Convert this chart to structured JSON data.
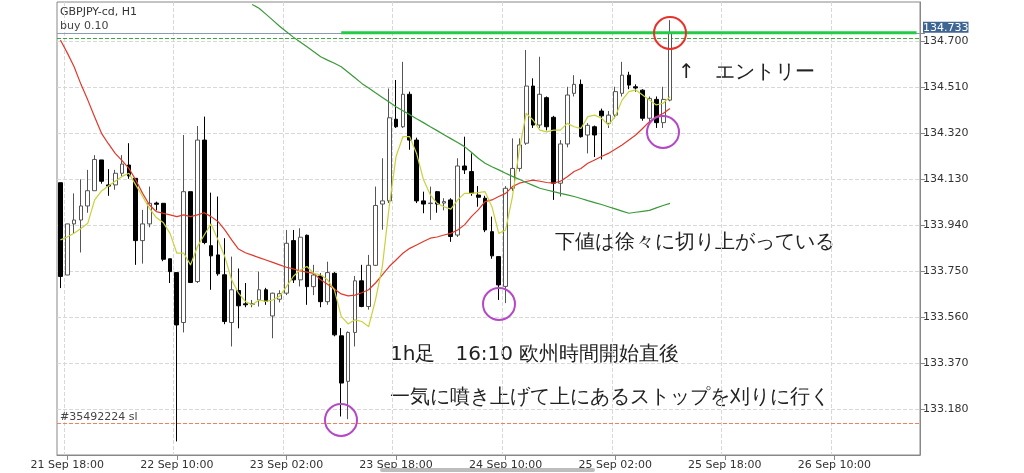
{
  "chart_data": {
    "type": "candlestick",
    "title": "GBPJPY-cd, H1",
    "categories": [
      null,
      "21 Sep 18:00",
      null,
      null,
      null,
      null,
      null,
      null,
      null,
      null,
      null,
      null,
      null,
      null,
      null,
      null,
      null,
      "22 Sep 10:00",
      null,
      null,
      null,
      null,
      null,
      null,
      null,
      null,
      null,
      null,
      null,
      null,
      null,
      null,
      null,
      "23 Sep 02:00",
      null,
      null,
      null,
      null,
      null,
      null,
      null,
      null,
      null,
      null,
      null,
      null,
      null,
      null,
      null,
      "23 Sep 18:00",
      null,
      null,
      null,
      null,
      null,
      null,
      null,
      null,
      null,
      null,
      null,
      null,
      null,
      null,
      null,
      "24 Sep 10:00",
      null,
      null,
      null,
      null,
      null,
      null,
      null,
      null,
      null,
      null,
      null,
      null,
      null,
      null,
      null,
      "25 Sep 02:00",
      null,
      null,
      null,
      null,
      null,
      null,
      null,
      null,
      null,
      null,
      null,
      null,
      null,
      null,
      null,
      "25 Sep 18:00",
      null,
      null,
      null,
      null,
      null,
      null,
      null,
      null,
      null,
      null,
      null,
      null,
      null,
      null,
      null,
      "26 Sep 10:00",
      null,
      null,
      null,
      null,
      null,
      null,
      null,
      null,
      null,
      null,
      null,
      null
    ],
    "ohlc": [
      [
        134.114,
        134.114,
        133.679,
        133.727
      ],
      [
        133.733,
        133.944,
        133.733,
        133.944
      ],
      [
        133.944,
        134.07,
        133.905,
        133.96
      ],
      [
        133.96,
        134.128,
        133.826,
        134.018
      ],
      [
        134.018,
        134.167,
        133.99,
        134.081
      ],
      [
        134.081,
        134.228,
        134.081,
        134.21
      ],
      [
        134.208,
        134.208,
        134.11,
        134.12
      ],
      [
        134.105,
        134.17,
        134.06,
        134.1
      ],
      [
        134.105,
        134.167,
        134.085,
        134.153
      ],
      [
        134.153,
        134.228,
        134.14,
        134.191
      ],
      [
        134.187,
        134.277,
        134.13,
        134.142
      ],
      [
        134.132,
        134.132,
        133.775,
        133.875
      ],
      [
        133.875,
        134.002,
        133.78,
        133.944
      ],
      [
        133.944,
        134.098,
        133.93,
        134.029
      ],
      [
        134.03,
        134.036,
        134.0,
        134.025
      ],
      [
        134.029,
        134.03,
        133.79,
        133.798
      ],
      [
        133.8,
        133.8,
        133.7,
        133.747
      ],
      [
        133.743,
        133.743,
        133.046,
        133.527
      ],
      [
        133.537,
        134.311,
        133.496,
        134.077
      ],
      [
        134.077,
        134.077,
        133.7,
        133.702
      ],
      [
        133.706,
        134.348,
        133.7,
        134.29
      ],
      [
        134.29,
        134.387,
        133.86,
        133.867
      ],
      [
        133.854,
        134.073,
        133.672,
        133.812
      ],
      [
        133.816,
        134.057,
        133.73,
        133.738
      ],
      [
        133.734,
        133.885,
        133.53,
        133.541
      ],
      [
        133.537,
        133.809,
        133.438,
        133.672
      ],
      [
        133.669,
        133.76,
        133.513,
        133.606
      ],
      [
        133.614,
        133.7,
        133.6,
        133.61
      ],
      [
        133.612,
        133.63,
        133.6,
        133.615
      ],
      [
        133.63,
        133.747,
        133.603,
        133.672
      ],
      [
        133.672,
        133.68,
        133.61,
        133.624
      ],
      [
        133.564,
        133.66,
        133.472,
        133.658
      ],
      [
        133.633,
        133.67,
        133.62,
        133.656
      ],
      [
        133.658,
        133.919,
        133.65,
        133.864
      ],
      [
        133.875,
        133.919,
        133.7,
        133.713
      ],
      [
        133.713,
        133.926,
        133.686,
        133.889
      ],
      [
        133.897,
        133.9,
        133.61,
        133.685
      ],
      [
        133.685,
        133.775,
        133.65,
        133.733
      ],
      [
        133.729,
        133.74,
        133.6,
        133.623
      ],
      [
        133.623,
        133.788,
        133.61,
        133.743
      ],
      [
        133.74,
        133.745,
        133.48,
        133.486
      ],
      [
        133.482,
        133.514,
        133.149,
        133.287
      ],
      [
        133.294,
        133.5,
        133.138,
        133.496
      ],
      [
        133.496,
        133.729,
        133.438,
        133.709
      ],
      [
        133.709,
        133.775,
        133.6,
        133.603
      ],
      [
        133.603,
        133.816,
        133.59,
        133.773
      ],
      [
        133.773,
        134.098,
        133.77,
        134.02
      ],
      [
        134.026,
        134.215,
        133.92,
        134.039
      ],
      [
        134.039,
        134.503,
        134.03,
        134.382
      ],
      [
        134.376,
        134.538,
        134.34,
        134.345
      ],
      [
        134.345,
        134.613,
        134.34,
        134.479
      ],
      [
        134.479,
        134.49,
        134.25,
        134.29
      ],
      [
        134.29,
        134.3,
        134.03,
        134.039
      ],
      [
        134.039,
        134.077,
        133.988,
        134.026
      ],
      [
        134.028,
        134.098,
        133.96,
        134.03
      ],
      [
        134.077,
        134.08,
        133.99,
        134.026
      ],
      [
        134.03,
        134.05,
        134.0,
        134.036
      ],
      [
        134.043,
        134.05,
        133.87,
        133.892
      ],
      [
        133.898,
        134.215,
        133.89,
        134.183
      ],
      [
        134.183,
        134.304,
        134.15,
        134.167
      ],
      [
        134.16,
        134.235,
        134.06,
        134.07
      ],
      [
        134.063,
        134.1,
        134.015,
        134.054
      ],
      [
        134.05,
        134.06,
        133.91,
        133.919
      ],
      [
        133.912,
        133.974,
        133.8,
        133.812
      ],
      [
        133.809,
        133.81,
        133.63,
        133.692
      ],
      [
        133.686,
        134.1,
        133.617,
        134.091
      ],
      [
        134.091,
        134.297,
        134.08,
        134.173
      ],
      [
        134.173,
        134.297,
        134.16,
        134.27
      ],
      [
        134.277,
        134.662,
        134.27,
        134.513
      ],
      [
        134.513,
        134.545,
        134.34,
        134.352
      ],
      [
        134.352,
        134.634,
        134.34,
        134.479
      ],
      [
        134.465,
        134.47,
        134.33,
        134.345
      ],
      [
        134.384,
        134.39,
        134.043,
        134.112
      ],
      [
        134.112,
        134.29,
        134.057,
        134.274
      ],
      [
        134.274,
        134.51,
        134.26,
        134.476
      ],
      [
        134.483,
        134.558,
        134.47,
        134.52
      ],
      [
        134.52,
        134.54,
        134.3,
        134.304
      ],
      [
        134.311,
        134.36,
        134.235,
        134.351
      ],
      [
        134.345,
        134.35,
        134.22,
        134.311
      ],
      [
        134.41,
        134.42,
        134.21,
        134.39
      ],
      [
        134.359,
        134.41,
        134.34,
        134.393
      ],
      [
        134.393,
        134.51,
        134.38,
        134.49
      ],
      [
        134.483,
        134.613,
        134.47,
        134.558
      ],
      [
        134.558,
        134.572,
        134.5,
        134.517
      ],
      [
        134.51,
        134.52,
        134.49,
        134.505
      ],
      [
        134.496,
        134.5,
        134.37,
        134.38
      ],
      [
        134.38,
        134.47,
        134.36,
        134.462
      ],
      [
        134.458,
        134.47,
        134.34,
        134.362
      ],
      [
        134.362,
        134.51,
        134.34,
        134.458
      ],
      [
        134.455,
        134.785,
        134.45,
        134.73
      ],
      null,
      null,
      null,
      null,
      null,
      null,
      null,
      null,
      null,
      null,
      null,
      null,
      null,
      null,
      null,
      null,
      null,
      null,
      null,
      null,
      null,
      null,
      null,
      null,
      null,
      null,
      null,
      null,
      null,
      null,
      null,
      null,
      null,
      null,
      null,
      null
    ],
    "series": [
      {
        "type": "line",
        "color": "#e0392b",
        "values": [
          134.703,
          134.65,
          134.593,
          134.52,
          134.455,
          134.385,
          134.318,
          134.275,
          134.235,
          134.205,
          134.173,
          134.125,
          134.07,
          134.022,
          133.995,
          133.988,
          133.981,
          133.974,
          133.981,
          133.974,
          133.981,
          133.99,
          133.974,
          133.954,
          133.919,
          133.878,
          133.84,
          133.825,
          133.815,
          133.805,
          133.795,
          133.785,
          133.775,
          133.765,
          133.758,
          133.75,
          133.745,
          133.74,
          133.713,
          133.695,
          133.675,
          133.655,
          133.647,
          133.65,
          133.66,
          133.672,
          133.7,
          133.734,
          133.768,
          133.795,
          133.823,
          133.843,
          133.857,
          133.871,
          133.885,
          133.89,
          133.898,
          133.905,
          133.919,
          133.94,
          133.974,
          134.002,
          134.036,
          134.043,
          134.057,
          134.07,
          134.098,
          134.112,
          134.119,
          134.125,
          134.12,
          134.115,
          134.112,
          134.12,
          134.139,
          134.16,
          134.173,
          134.194,
          134.208,
          134.222,
          134.235,
          134.252,
          134.27,
          134.29,
          134.311,
          134.338,
          134.366,
          134.387,
          134.4,
          134.42,
          null,
          null,
          null,
          null,
          null,
          null,
          null,
          null,
          null,
          null,
          null,
          null,
          null,
          null,
          null,
          null,
          null,
          null,
          null,
          null,
          null,
          null,
          null,
          null,
          null,
          null,
          null,
          null,
          null,
          null,
          null,
          null,
          null,
          null,
          null,
          null
        ]
      },
      {
        "type": "line",
        "color": "#c8d23a",
        "values": [
          133.878,
          133.89,
          133.905,
          133.925,
          133.947,
          134.043,
          134.08,
          134.1,
          134.12,
          134.14,
          134.153,
          134.105,
          134.057,
          134.008,
          133.97,
          133.95,
          133.905,
          133.823,
          133.823,
          133.775,
          133.85,
          133.898,
          133.944,
          133.878,
          133.809,
          133.713,
          133.658,
          133.624,
          133.61,
          133.63,
          133.624,
          133.63,
          133.645,
          133.685,
          133.727,
          133.754,
          133.768,
          133.74,
          133.733,
          133.713,
          133.672,
          133.562,
          133.531,
          133.548,
          133.541,
          133.52,
          133.63,
          133.768,
          134.015,
          134.222,
          134.304,
          134.304,
          134.235,
          134.127,
          134.064,
          134.029,
          134.015,
          134.005,
          134.043,
          134.07,
          134.07,
          134.073,
          134.077,
          134.015,
          133.905,
          133.919,
          134.057,
          134.249,
          134.4,
          134.373,
          134.331,
          134.324,
          134.331,
          134.331,
          134.359,
          134.345,
          134.338,
          134.387,
          134.393,
          134.38,
          134.352,
          134.387,
          134.455,
          134.49,
          134.497,
          134.476,
          134.455,
          134.435,
          134.442,
          134.469,
          null,
          null,
          null,
          null,
          null,
          null,
          null,
          null,
          null,
          null,
          null,
          null,
          null,
          null,
          null,
          null,
          null,
          null,
          null,
          null,
          null,
          null,
          null,
          null,
          null,
          null,
          null,
          null,
          null,
          null,
          null,
          null,
          null,
          null,
          null,
          null
        ]
      },
      {
        "type": "line",
        "color": "#3a9a3a",
        "values": [
          null,
          null,
          null,
          null,
          null,
          null,
          null,
          null,
          null,
          null,
          null,
          null,
          null,
          null,
          null,
          null,
          null,
          null,
          null,
          null,
          null,
          null,
          null,
          null,
          null,
          null,
          null,
          null,
          134.85,
          134.834,
          134.81,
          134.785,
          134.76,
          134.737,
          134.715,
          134.695,
          134.675,
          134.655,
          134.634,
          134.62,
          134.607,
          134.593,
          134.57,
          134.547,
          134.524,
          134.505,
          134.485,
          134.466,
          134.447,
          134.428,
          134.411,
          134.395,
          134.378,
          134.362,
          134.345,
          134.329,
          134.312,
          134.296,
          134.28,
          134.263,
          134.24,
          134.215,
          134.194,
          134.18,
          134.167,
          134.153,
          134.14,
          134.128,
          134.115,
          134.103,
          134.091,
          134.084,
          134.077,
          134.07,
          134.064,
          134.057,
          134.049,
          134.04,
          134.032,
          134.024,
          134.015,
          134.006,
          133.997,
          133.988,
          133.992,
          133.996,
          134.0,
          134.01,
          134.02,
          134.029,
          null,
          null,
          null,
          null,
          null,
          null,
          null,
          null,
          null,
          null,
          null,
          null,
          null,
          null,
          null,
          null,
          null,
          null,
          null,
          null,
          null,
          null,
          null,
          null,
          null,
          null,
          null,
          null,
          null,
          null,
          null,
          null,
          null,
          null,
          null,
          null
        ]
      },
      {
        "type": "line",
        "color": "#22cc44",
        "values": [
          null,
          null,
          null,
          null,
          null,
          null,
          null,
          null,
          null,
          null,
          null,
          null,
          null,
          null,
          null,
          null,
          null,
          null,
          null,
          null,
          null,
          null,
          null,
          null,
          null,
          null,
          null,
          null,
          null,
          null,
          null,
          null,
          null,
          null,
          null,
          null,
          null,
          null,
          null,
          null,
          null,
          134.733,
          134.733,
          134.733,
          134.733,
          134.733,
          134.733,
          134.733,
          134.733,
          134.733,
          134.733,
          134.733,
          134.733,
          134.733,
          134.733,
          134.733,
          134.733,
          134.733,
          134.733,
          134.733,
          134.733,
          134.733,
          134.733,
          134.733,
          134.733,
          134.733,
          134.733,
          134.733,
          134.733,
          134.733,
          134.733,
          134.733,
          134.733,
          134.733,
          134.733,
          134.733,
          134.733,
          134.733,
          134.733,
          134.733,
          134.733,
          134.733,
          134.733,
          134.733,
          134.733,
          134.733,
          134.733,
          134.733,
          134.733,
          134.733,
          134.733,
          134.733,
          134.733,
          134.733,
          134.733,
          134.733,
          134.733,
          134.733,
          134.733,
          134.733,
          134.733,
          134.733,
          134.733,
          134.733,
          134.733,
          134.733,
          134.733,
          134.733,
          134.733,
          134.733,
          134.733,
          134.733,
          134.733,
          134.733,
          134.733,
          134.733,
          134.733,
          134.733,
          134.733,
          134.733,
          134.733,
          134.733,
          134.733,
          134.733,
          134.733,
          134.733
        ]
      }
    ],
    "ylim": [
      132.99,
      134.86
    ],
    "yticks": [
      {
        "value": 133.18,
        "label": "133.180"
      },
      {
        "value": 133.37,
        "label": "133.370"
      },
      {
        "value": 133.56,
        "label": "133.560"
      },
      {
        "value": 133.75,
        "label": "133.750"
      },
      {
        "value": 133.94,
        "label": "133.940"
      },
      {
        "value": 134.13,
        "label": "134.130"
      },
      {
        "value": 134.32,
        "label": "134.320"
      },
      {
        "value": 134.51,
        "label": "134.510"
      },
      {
        "value": 134.7,
        "label": "134.700"
      },
      134.733
    ],
    "ref_lines": [
      {
        "axis": "y",
        "value": 134.733,
        "label": "buy 0.10",
        "color": "#8a9bb5",
        "line_style": "solid"
      },
      {
        "axis": "y",
        "value": 134.712,
        "color": "#3aa83a",
        "line_style": "dashed"
      },
      {
        "axis": "y",
        "value": 133.122,
        "label": "#35492224 sl",
        "color": "#f08060",
        "line_style": "dashed"
      }
    ],
    "annotations": [
      "↑　エントリー",
      "下値は徐々に切り上がっている",
      "1h足　16:10 欧州時間開始直後",
      "一気に噴き上げて上にあるストップを刈りに行く"
    ],
    "grid": true
  }
}
